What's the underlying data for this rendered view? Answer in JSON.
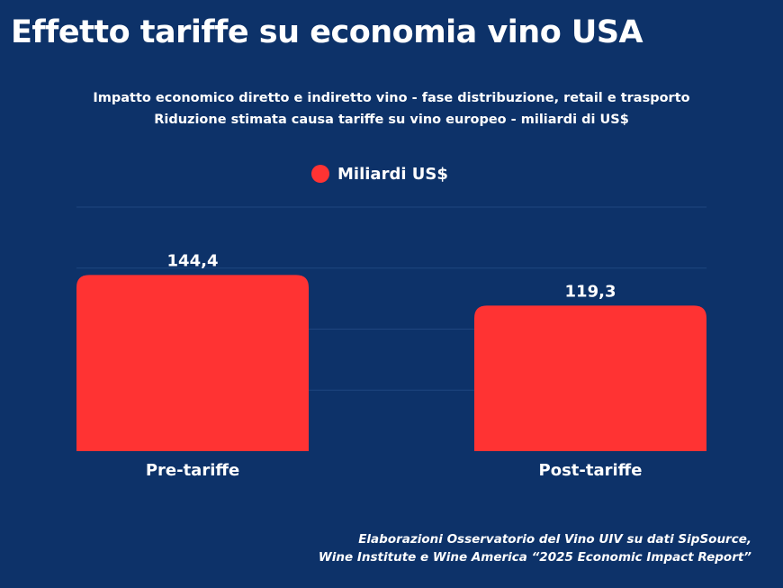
{
  "colors": {
    "background": "#0d3269",
    "bar": "#ff3333",
    "grid": "#1f4680",
    "text": "#ffffff"
  },
  "chart_data": {
    "type": "bar",
    "title": "Effetto tariffe su economia vino USA",
    "subtitle_1": "Impatto economico diretto e indiretto vino - fase distribuzione, retail e trasporto",
    "subtitle_2": "Riduzione stimata causa tariffe su vino europeo - miliardi di US$",
    "categories": [
      "Pre-tariffe",
      "Post-tariffe"
    ],
    "series": [
      {
        "name": "Miliardi US$",
        "values": [
          144.4,
          119.3
        ],
        "labels": [
          "144,4",
          "119,3"
        ]
      }
    ],
    "xlabel": "",
    "ylabel": "",
    "ylim": [
      0,
      200
    ],
    "grid": true,
    "legend": "top-center",
    "source_1": "Elaborazioni Osservatorio del Vino UIV su dati SipSource,",
    "source_2": "Wine Institute e Wine America “2025 Economic Impact Report”"
  }
}
